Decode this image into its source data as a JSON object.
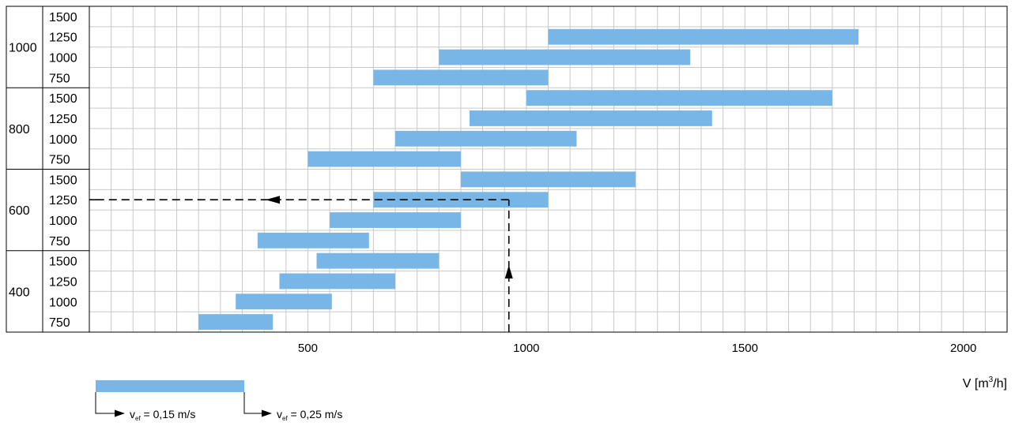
{
  "chart_data": {
    "type": "bar",
    "orientation": "horizontal-range",
    "xlabel": "V [m",
    "xlabel_sup": "3",
    "xlabel_tail": "/h]",
    "xlim": [
      0,
      2100
    ],
    "xticks": [
      500,
      1000,
      1500,
      2000
    ],
    "grid": true,
    "bar_color": "#77b6e6",
    "groups": [
      {
        "label": "1000",
        "rows": [
          {
            "label": "1500",
            "range": null
          },
          {
            "label": "1250",
            "range": [
              1050,
              1760
            ]
          },
          {
            "label": "1000",
            "range": [
              800,
              1375
            ]
          },
          {
            "label": "750",
            "range": [
              650,
              1050
            ]
          }
        ]
      },
      {
        "label": "800",
        "rows": [
          {
            "label": "1500",
            "range": [
              1000,
              1700
            ]
          },
          {
            "label": "1250",
            "range": [
              870,
              1425
            ]
          },
          {
            "label": "1000",
            "range": [
              700,
              1115
            ]
          },
          {
            "label": "750",
            "range": [
              500,
              850
            ]
          }
        ]
      },
      {
        "label": "600",
        "rows": [
          {
            "label": "1500",
            "range": [
              850,
              1250
            ]
          },
          {
            "label": "1250",
            "range": [
              650,
              1050
            ]
          },
          {
            "label": "1000",
            "range": [
              550,
              850
            ]
          },
          {
            "label": "750",
            "range": [
              385,
              640
            ]
          }
        ]
      },
      {
        "label": "400",
        "rows": [
          {
            "label": "1500",
            "range": [
              520,
              800
            ]
          },
          {
            "label": "1250",
            "range": [
              435,
              700
            ]
          },
          {
            "label": "1000",
            "range": [
              335,
              555
            ]
          },
          {
            "label": "750",
            "range": [
              250,
              420
            ]
          }
        ]
      }
    ],
    "annotation": {
      "x": 960,
      "group": "600",
      "row": "1250"
    },
    "legend": {
      "min_prefix": "v",
      "min_sub": "ef",
      "min_value": " = 0,15 m/s",
      "max_prefix": "v",
      "max_sub": "ef",
      "max_value": " = 0,25 m/s"
    }
  }
}
